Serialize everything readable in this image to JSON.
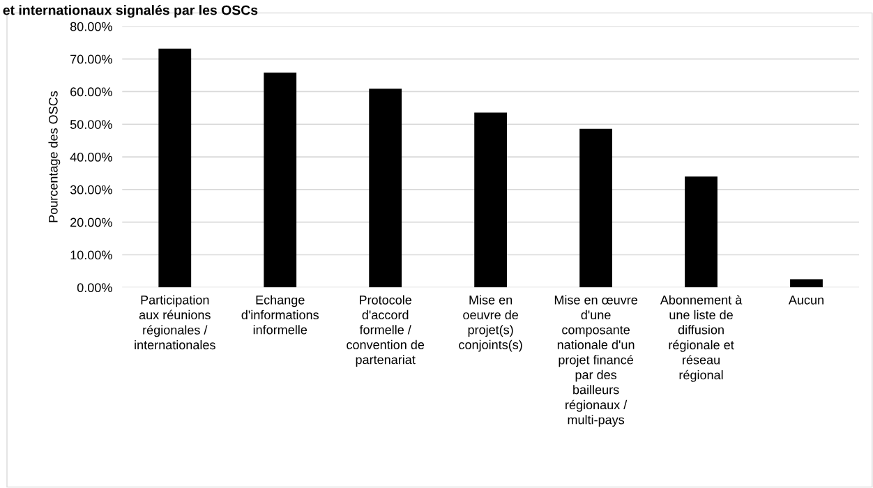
{
  "chart_data": {
    "type": "bar",
    "title": "et internationaux signalés par les OSCs",
    "ylabel": "Pourcentage des OSCs",
    "categories": [
      "Participation\naux réunions\nrégionales /\ninternationales",
      "Echange\nd'informations\ninformelle",
      "Protocole\nd'accord\nformelle /\nconvention de\npartenariat",
      "Mise en\noeuvre de\nprojet(s)\nconjoints(s)",
      "Mise en œuvre\nd'une\ncomposante\nnationale d'un\nprojet financé\npar des\nbailleurs\nrégionaux /\nmulti-pays",
      "Abonnement à\nune liste de\ndiffusion\nrégionale et\nréseau\nrégional",
      "Aucun"
    ],
    "values": [
      73.2,
      65.8,
      60.9,
      53.6,
      48.6,
      34.0,
      2.5
    ],
    "color": "#000000",
    "ylim": [
      0,
      80
    ],
    "yticks": [
      {
        "value": 0,
        "label": "0.00%"
      },
      {
        "value": 10,
        "label": "10.00%"
      },
      {
        "value": 20,
        "label": "20.00%"
      },
      {
        "value": 30,
        "label": "30.00%"
      },
      {
        "value": 40,
        "label": "40.00%"
      },
      {
        "value": 50,
        "label": "50.00%"
      },
      {
        "value": 60,
        "label": "60.00%"
      },
      {
        "value": 70,
        "label": "70.00%"
      },
      {
        "value": 80,
        "label": "80.00%"
      }
    ],
    "grid": "y"
  }
}
